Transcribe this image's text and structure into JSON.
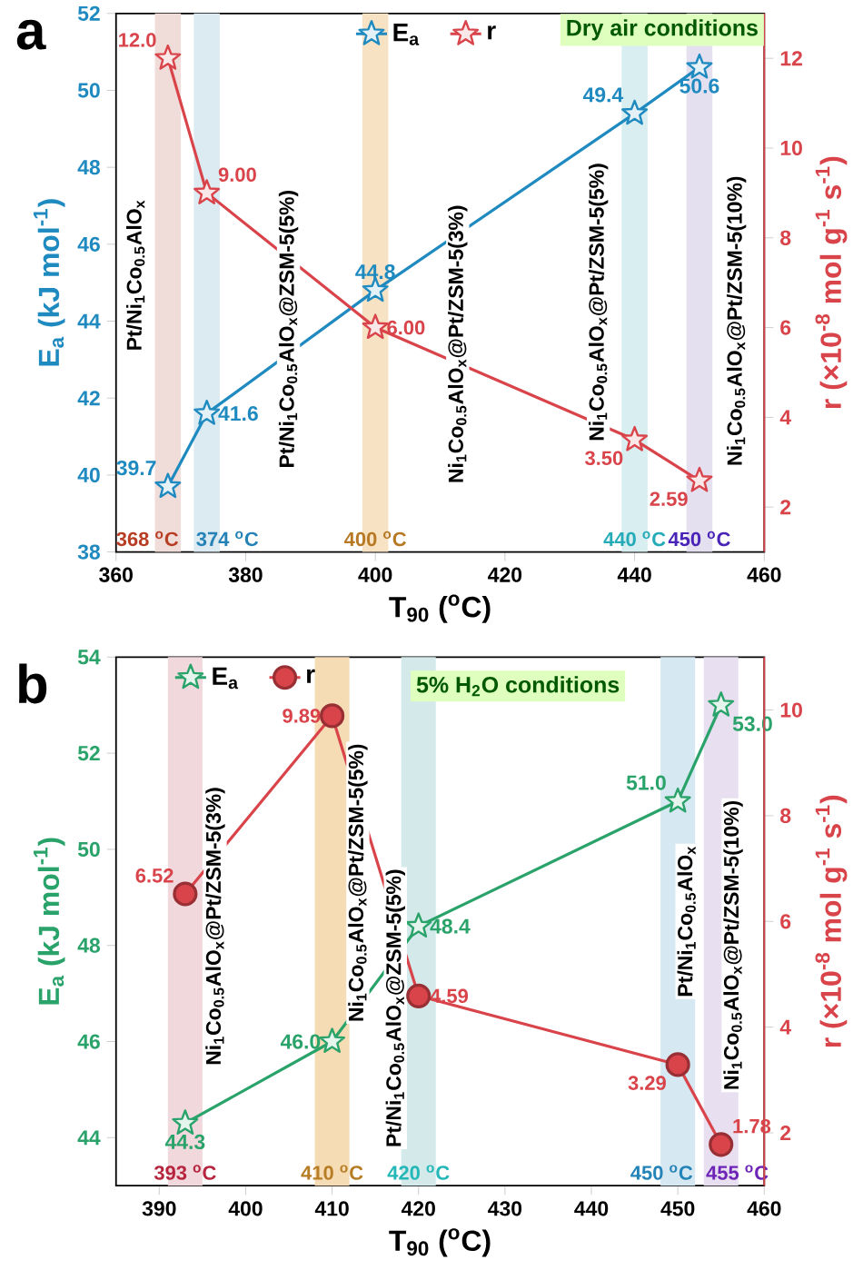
{
  "chart_data": [
    {
      "type": "line",
      "title": "a",
      "xlabel": "T$_{90}$ ($^{o}$C)",
      "ylabel": "E$_{a}$ (kJ mol$^{-1}$)",
      "y2label": "r (×10$^{-8}$ mol g$^{-1}$ s$^{-1}$)",
      "x": [
        368,
        374,
        400,
        440,
        450
      ],
      "series": [
        {
          "name": "E$_{a}$",
          "color": "#1f8ac0",
          "marker": "star",
          "values": [
            39.7,
            41.6,
            44.8,
            49.4,
            50.6
          ],
          "value_labels": [
            "39.7",
            "41.6",
            "44.8",
            "49.4",
            "50.6"
          ]
        },
        {
          "name": "r",
          "color": "#d9434a",
          "marker": "star",
          "axis": "y2",
          "values": [
            12.0,
            9.0,
            6.0,
            3.5,
            2.59
          ],
          "value_labels": [
            "12.0",
            "9.00",
            "6.00",
            "3.50",
            "2.59"
          ]
        }
      ],
      "xlim": [
        360,
        460
      ],
      "xticks": [
        360,
        380,
        400,
        420,
        440,
        460
      ],
      "ylim": [
        38,
        52
      ],
      "yticks": [
        38,
        40,
        42,
        44,
        46,
        48,
        50,
        52
      ],
      "y2lim": [
        1,
        13
      ],
      "y2ticks": [
        2,
        4,
        6,
        8,
        10,
        12
      ],
      "bands": [
        {
          "axis": "x",
          "from": 366,
          "to": 370,
          "label": "368 $^{o}$C",
          "color": "#f0dcd8"
        },
        {
          "axis": "x",
          "from": 372,
          "to": 376,
          "label": "374 $^{o}$C",
          "color": "#dceaf2"
        },
        {
          "axis": "x",
          "from": 398,
          "to": 402,
          "label": "400 $^{o}$C",
          "color": "#f8e2c4"
        },
        {
          "axis": "x",
          "from": 438,
          "to": 442,
          "label": "440 $^{o}$C",
          "color": "#d8eef0"
        },
        {
          "axis": "x",
          "from": 448,
          "to": 452,
          "label": "450 $^{o}$C",
          "color": "#e4e0f0"
        }
      ],
      "annotations": [
        "Dry air conditions",
        "Pt/Ni$_{1}$Co$_{0.5}$AlO$_{x}$",
        "Pt/Ni$_{1}$Co$_{0.5}$AlO$_{x}$@ZSM-5(5%)",
        "Ni$_{1}$Co$_{0.5}$AlO$_{x}$@Pt/ZSM-5(3%)",
        "Ni$_{1}$Co$_{0.5}$AlO$_{x}$@Pt/ZSM-5(5%)",
        "Ni$_{1}$Co$_{0.5}$AlO$_{x}$@Pt/ZSM-5(10%)"
      ],
      "legend": "top"
    },
    {
      "type": "line",
      "title": "b",
      "xlabel": "T$_{90}$ ($^{o}$C)",
      "ylabel": "E$_{a}$ (kJ mol$^{-1}$)",
      "y2label": "r (×10$^{-8}$ mol g$^{-1}$ s$^{-1}$)",
      "x": [
        393,
        410,
        420,
        450,
        455
      ],
      "series": [
        {
          "name": "E$_{a}$",
          "color": "#2aa36b",
          "marker": "star",
          "values": [
            44.3,
            46.0,
            48.4,
            51.0,
            53.0
          ],
          "value_labels": [
            "44.3",
            "46.0",
            "48.4",
            "51.0",
            "53.0"
          ]
        },
        {
          "name": "r",
          "color": "#d9434a",
          "marker": "circle",
          "axis": "y2",
          "values": [
            6.52,
            9.89,
            4.59,
            3.29,
            1.78
          ],
          "value_labels": [
            "6.52",
            "9.89",
            "4.59",
            "3.29",
            "1.78"
          ]
        }
      ],
      "xlim": [
        385,
        460
      ],
      "xticks": [
        390,
        400,
        410,
        420,
        430,
        440,
        450,
        460
      ],
      "ylim": [
        43,
        54
      ],
      "yticks": [
        44,
        46,
        48,
        50,
        52,
        54
      ],
      "y2lim": [
        1,
        11
      ],
      "y2ticks": [
        2,
        4,
        6,
        8,
        10
      ],
      "bands": [
        {
          "axis": "x",
          "from": 391,
          "to": 395,
          "label": "393 $^{o}$C",
          "color": "#f0d8dc"
        },
        {
          "axis": "x",
          "from": 408,
          "to": 412,
          "label": "410 $^{o}$C",
          "color": "#f6dcb4"
        },
        {
          "axis": "x",
          "from": 418,
          "to": 422,
          "label": "420 $^{o}$C",
          "color": "#d4eaea"
        },
        {
          "axis": "x",
          "from": 448,
          "to": 452,
          "label": "450 $^{o}$C",
          "color": "#d6e8f2"
        },
        {
          "axis": "x",
          "from": 453,
          "to": 457,
          "label": "455 $^{o}$C",
          "color": "#e8e0f0"
        }
      ],
      "annotations": [
        "5% H$_{2}$O conditions",
        "Ni$_{1}$Co$_{0.5}$AlO$_{x}$@Pt/ZSM-5(3%)",
        "Ni$_{1}$Co$_{0.5}$AlO$_{x}$@Pt/ZSM-5(5%)",
        "Pt/Ni$_{1}$Co$_{0.5}$AlO$_{x}$@ZSM-5(5%)",
        "Pt/Ni$_{1}$Co$_{0.5}$AlO$_{x}$",
        "Ni$_{1}$Co$_{0.5}$AlO$_{x}$@Pt/ZSM-5(10%)"
      ],
      "legend": "top left"
    }
  ]
}
